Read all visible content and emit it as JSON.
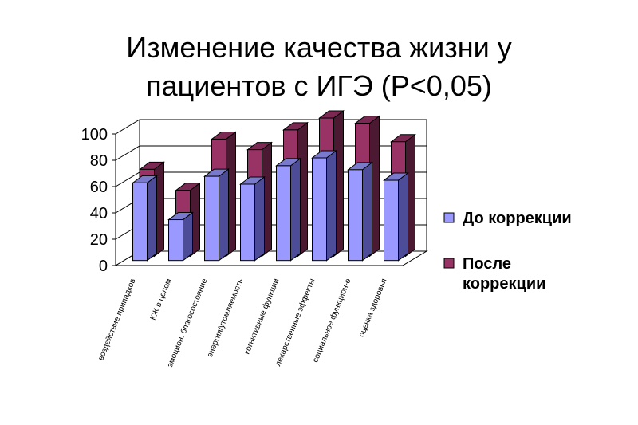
{
  "chart_data": {
    "type": "bar",
    "title_line1": "Изменение качества жизни у",
    "title_line2": "пациентов с ИГЭ (P<0,05)",
    "categories": [
      "воздействие припадков",
      "КЖ в целом",
      "эмоцион. благосостояние",
      "энергия/утомляемость",
      "когнитивные функции",
      "лекарственные эффекты",
      "социальное функцион-е",
      "оценка здоровья"
    ],
    "series": [
      {
        "name": "До коррекции",
        "values": [
          59,
          31,
          64,
          58,
          72,
          78,
          69,
          61
        ]
      },
      {
        "name": "После коррекции",
        "values": [
          66,
          50,
          89,
          81,
          96,
          105,
          101,
          87
        ]
      }
    ],
    "legend": {
      "line1_after": "После",
      "line2_after": "коррекции"
    },
    "yticks": [
      "0",
      "20",
      "40",
      "60",
      "80",
      "100"
    ],
    "ylim": [
      0,
      100
    ],
    "legend_position": "right",
    "colors": {
      "before_front": "#9999FF",
      "before_side": "#4C4C99",
      "before_top": "#7A7ACC",
      "after_front": "#993366",
      "after_side": "#4C1933",
      "after_top": "#7A2952"
    }
  }
}
